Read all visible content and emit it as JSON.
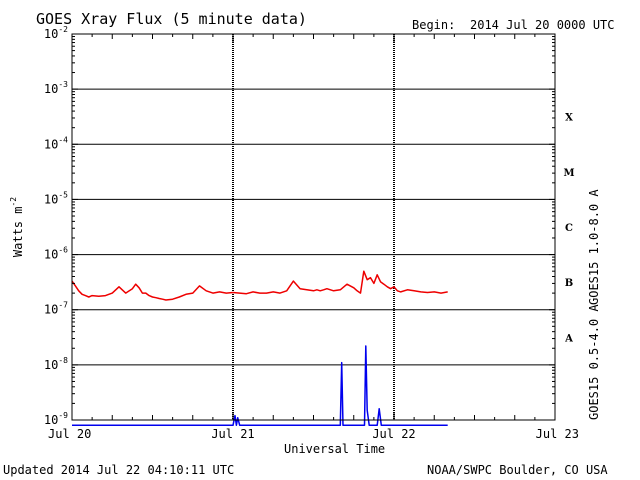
{
  "header": {
    "title": "GOES Xray Flux (5 minute data)",
    "begin_label": "Begin:",
    "begin_value": "2014 Jul 20 0000 UTC"
  },
  "footer": {
    "updated": "Updated 2014 Jul 22 04:10:11 UTC",
    "credit": "NOAA/SWPC Boulder, CO USA"
  },
  "colors": {
    "long_channel": "#ee0000",
    "short_channel": "#0000ee",
    "axes": "#000000",
    "background": "#ffffff"
  },
  "chart_data": {
    "type": "line",
    "title": "GOES Xray Flux (5 minute data)",
    "xlabel": "Universal Time",
    "ylabel": "Watts m",
    "ylabel_superscript": "-2",
    "yscale": "log",
    "ylim": [
      1e-09,
      0.01
    ],
    "xlim": [
      0,
      72
    ],
    "x_unit": "hours since 2014 Jul 20 0000 UTC",
    "grid": "horizontal lines at each decade; dashed vertical day dividers",
    "x_ticks": [
      {
        "x": 0,
        "label": "Jul 20"
      },
      {
        "x": 24,
        "label": "Jul 21"
      },
      {
        "x": 48,
        "label": "Jul 22"
      },
      {
        "x": 72,
        "label": "Jul 23"
      }
    ],
    "y_ticks": [
      {
        "value": 0.01,
        "mantissa": "10",
        "exp": "-2"
      },
      {
        "value": 0.001,
        "mantissa": "10",
        "exp": "-3"
      },
      {
        "value": 0.0001,
        "mantissa": "10",
        "exp": "-4"
      },
      {
        "value": 1e-05,
        "mantissa": "10",
        "exp": "-5"
      },
      {
        "value": 1e-06,
        "mantissa": "10",
        "exp": "-6"
      },
      {
        "value": 1e-07,
        "mantissa": "10",
        "exp": "-7"
      },
      {
        "value": 1e-08,
        "mantissa": "10",
        "exp": "-8"
      },
      {
        "value": 1e-09,
        "mantissa": "10",
        "exp": "-9"
      }
    ],
    "flare_classes": [
      {
        "label": "X",
        "low": 0.0001,
        "high": 0.001
      },
      {
        "label": "M",
        "low": 1e-05,
        "high": 0.0001
      },
      {
        "label": "C",
        "low": 1e-06,
        "high": 1e-05
      },
      {
        "label": "B",
        "low": 1e-07,
        "high": 1e-06
      },
      {
        "label": "A",
        "low": 1e-08,
        "high": 1e-07
      }
    ],
    "series": [
      {
        "name": "GOES15 1.0-8.0 A",
        "color": "#ee0000",
        "x": [
          0,
          0.5,
          1,
          1.5,
          2,
          2.5,
          3,
          4,
          5,
          6,
          7,
          8,
          9,
          9.5,
          10,
          10.5,
          11,
          11.5,
          12,
          12.5,
          13,
          13.5,
          14,
          15,
          16,
          17,
          18,
          19,
          20,
          21,
          22,
          23,
          24,
          25,
          26,
          27,
          28,
          29,
          30,
          31,
          32,
          33,
          34,
          35,
          36,
          36.5,
          37,
          37.5,
          38,
          39,
          40,
          41,
          42,
          42.5,
          43,
          43.5,
          44,
          44.5,
          45,
          45.5,
          46,
          46.5,
          47,
          47.5,
          48,
          48.5,
          49,
          50,
          51,
          52,
          53,
          54,
          55,
          56
        ],
        "values": [
          3.3e-07,
          2.7e-07,
          2.2e-07,
          1.9e-07,
          1.8e-07,
          1.7e-07,
          1.8e-07,
          1.75e-07,
          1.8e-07,
          2e-07,
          2.6e-07,
          2e-07,
          2.4e-07,
          2.9e-07,
          2.5e-07,
          2e-07,
          2e-07,
          1.8e-07,
          1.7e-07,
          1.65e-07,
          1.6e-07,
          1.55e-07,
          1.5e-07,
          1.55e-07,
          1.7e-07,
          1.9e-07,
          2e-07,
          2.7e-07,
          2.2e-07,
          2e-07,
          2.1e-07,
          2e-07,
          2.05e-07,
          2e-07,
          1.95e-07,
          2.1e-07,
          2e-07,
          2e-07,
          2.1e-07,
          2e-07,
          2.2e-07,
          3.3e-07,
          2.4e-07,
          2.3e-07,
          2.2e-07,
          2.3e-07,
          2.2e-07,
          2.3e-07,
          2.4e-07,
          2.2e-07,
          2.3e-07,
          2.9e-07,
          2.5e-07,
          2.2e-07,
          2e-07,
          5e-07,
          3.5e-07,
          3.8e-07,
          3e-07,
          4.3e-07,
          3.2e-07,
          2.9e-07,
          2.6e-07,
          2.4e-07,
          2.6e-07,
          2.2e-07,
          2.1e-07,
          2.3e-07,
          2.2e-07,
          2.1e-07,
          2.05e-07,
          2.1e-07,
          2e-07,
          2.1e-07
        ]
      },
      {
        "name": "GOES15 0.5-4.0 A",
        "color": "#0000ee",
        "x": [
          0,
          1,
          2,
          3,
          4,
          5,
          6,
          7,
          8,
          9,
          10,
          11,
          12,
          13,
          14,
          15,
          16,
          17,
          18,
          19,
          20,
          21,
          22,
          23,
          24,
          24.3,
          24.5,
          24.7,
          25,
          26,
          27,
          28,
          29,
          30,
          31,
          32,
          33,
          34,
          35,
          36,
          37,
          38,
          39,
          39.6,
          40,
          40.2,
          40.4,
          41,
          42,
          43,
          43.3,
          43.6,
          43.8,
          44,
          44.3,
          45,
          45.5,
          45.8,
          46.1,
          46.4,
          47,
          48,
          49,
          50,
          51,
          52,
          53,
          54,
          55,
          56
        ],
        "values": [
          8e-10,
          8e-10,
          8e-10,
          8e-10,
          8e-10,
          8e-10,
          8e-10,
          8e-10,
          8e-10,
          8e-10,
          8e-10,
          8e-10,
          8e-10,
          8e-10,
          8e-10,
          8e-10,
          8e-10,
          8e-10,
          8e-10,
          8e-10,
          8e-10,
          8e-10,
          8e-10,
          8e-10,
          8e-10,
          1.2e-09,
          8e-10,
          1.1e-09,
          8e-10,
          8e-10,
          8e-10,
          8e-10,
          8e-10,
          8e-10,
          8e-10,
          8e-10,
          8e-10,
          8e-10,
          8e-10,
          8e-10,
          8e-10,
          8e-10,
          8e-10,
          8e-10,
          8e-10,
          1.1e-08,
          8e-10,
          8e-10,
          8e-10,
          8e-10,
          8e-10,
          8e-10,
          2.2e-08,
          1.5e-09,
          8e-10,
          8e-10,
          8e-10,
          1.6e-09,
          8e-10,
          8e-10,
          8e-10,
          8e-10,
          8e-10,
          8e-10,
          8e-10,
          8e-10,
          8e-10,
          8e-10,
          8e-10,
          8e-10
        ]
      }
    ]
  }
}
